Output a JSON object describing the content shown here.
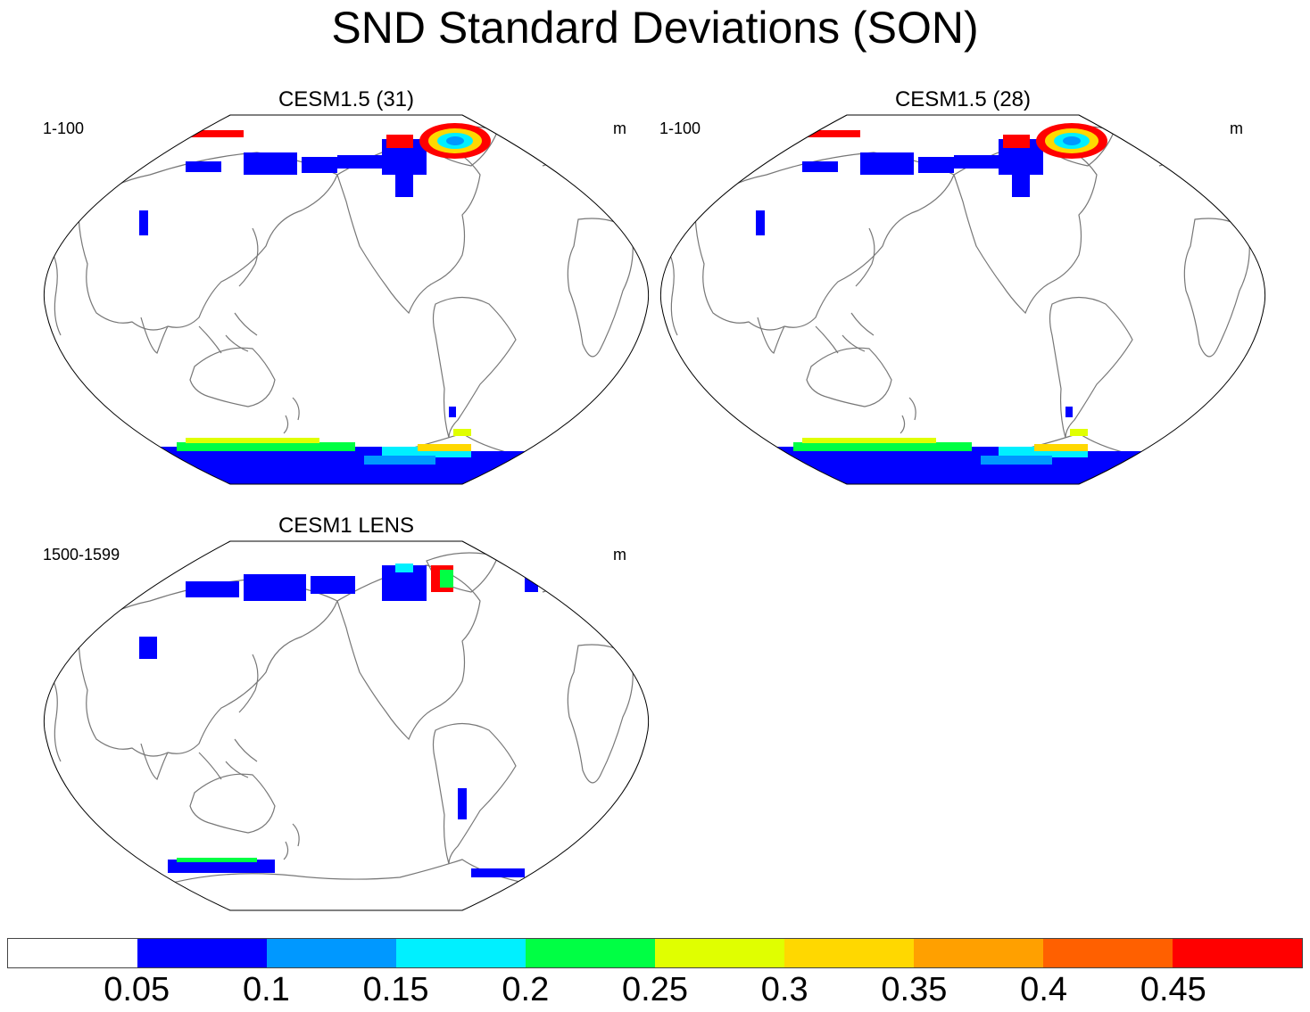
{
  "title": "SND Standard Deviations (SON)",
  "panels": [
    {
      "title": "CESM1.5 (31)",
      "left_label": "1-100",
      "right_label": "m",
      "snow_level": "high"
    },
    {
      "title": "CESM1.5 (28)",
      "left_label": "1-100",
      "right_label": "m",
      "snow_level": "high"
    },
    {
      "title": "CESM1 LENS",
      "left_label": "1500-1599",
      "right_label": "m",
      "snow_level": "low"
    }
  ],
  "colorbar": {
    "colors": [
      "#ffffff",
      "#0000ff",
      "#0098ff",
      "#00f0ff",
      "#00ff44",
      "#e0ff00",
      "#ffd800",
      "#ffa000",
      "#ff6000",
      "#ff0000"
    ],
    "labels": [
      "0.05",
      "0.1",
      "0.15",
      "0.2",
      "0.25",
      "0.3",
      "0.35",
      "0.4",
      "0.45"
    ]
  }
}
